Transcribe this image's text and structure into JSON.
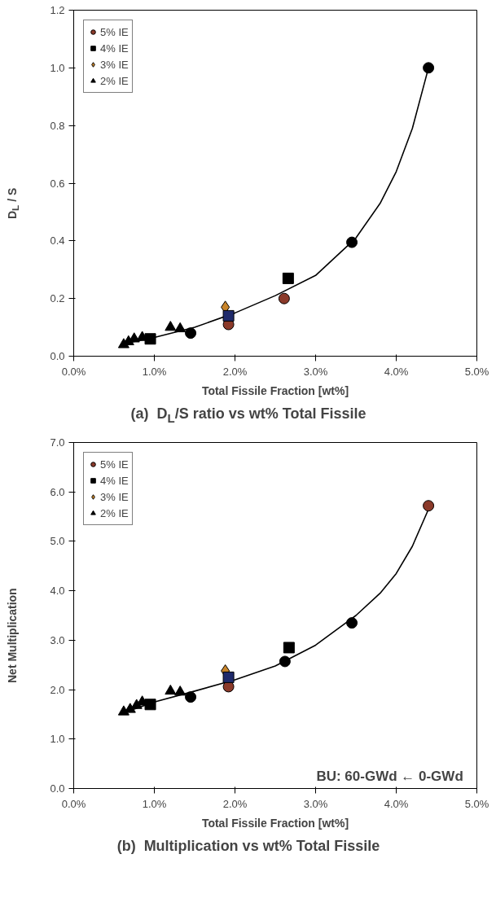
{
  "chart_data": [
    {
      "type": "scatter",
      "xlabel": "Total Fissile Fraction [wt%]",
      "ylabel": "D$_{L}$ / S",
      "title": "(a)  D$_{L}$/S ratio vs wt% Total Fissile",
      "xlim": [
        0,
        5
      ],
      "xticks": [
        {
          "value": 0,
          "label": "0.0%"
        },
        {
          "value": 1,
          "label": "1.0%"
        },
        {
          "value": 2,
          "label": "2.0%"
        },
        {
          "value": 3,
          "label": "3.0%"
        },
        {
          "value": 4,
          "label": "4.0%"
        },
        {
          "value": 5,
          "label": "5.0%"
        }
      ],
      "ylim": [
        0,
        1.2
      ],
      "yticks": [
        {
          "value": 0,
          "label": "0.0"
        },
        {
          "value": 0.2,
          "label": "0.2"
        },
        {
          "value": 0.4,
          "label": "0.4"
        },
        {
          "value": 0.6,
          "label": "0.6"
        },
        {
          "value": 0.8,
          "label": "0.8"
        },
        {
          "value": 1.0,
          "label": "1.0"
        },
        {
          "value": 1.2,
          "label": "1.2"
        }
      ],
      "grid": false,
      "legend": "top left",
      "series": [
        {
          "type": "line",
          "color": "#000000",
          "marker": "none",
          "line_style": "solid",
          "x": [
            0.65,
            1.0,
            1.5,
            2.0,
            2.5,
            3.0,
            3.5,
            3.8,
            4.0,
            4.2,
            4.4
          ],
          "values": [
            0.045,
            0.065,
            0.1,
            0.15,
            0.21,
            0.28,
            0.41,
            0.53,
            0.64,
            0.79,
            1.0
          ]
        },
        {
          "name": "5% IE",
          "color": "#8b3a2a",
          "marker": "circle",
          "x": [
            1.92,
            2.61
          ],
          "values": [
            0.11,
            0.2
          ]
        },
        {
          "name": "4% IE",
          "color": "#000000",
          "marker": "square",
          "x": [
            2.66,
            1.02,
            0.95
          ],
          "values": [
            0.27,
            null,
            0.06
          ]
        },
        {
          "name": "3% IE",
          "color": "#c8842a",
          "marker": "diamond",
          "x": [
            1.88
          ],
          "values": [
            0.17
          ]
        },
        {
          "name": "2% IE",
          "color": "#000000",
          "marker": "triangle",
          "x": [
            0.62,
            0.68,
            0.75,
            0.85,
            1.2,
            1.32
          ],
          "values": [
            0.04,
            0.05,
            0.06,
            0.065,
            0.1,
            0.095
          ]
        },
        {
          "color": "#000000",
          "marker": "circle",
          "x": [
            1.45,
            3.45,
            4.4
          ],
          "values": [
            0.08,
            0.395,
            1.0
          ]
        },
        {
          "color": "#1f2a6b",
          "marker": "square",
          "x": [
            1.92
          ],
          "values": [
            0.14
          ]
        }
      ]
    },
    {
      "type": "scatter",
      "xlabel": "Total Fissile Fraction [wt%]",
      "ylabel": "Net Multiplication",
      "title": "(b)  Multiplication vs wt% Total Fissile",
      "xlim": [
        0,
        5
      ],
      "xticks": [
        {
          "value": 0,
          "label": "0.0%"
        },
        {
          "value": 1,
          "label": "1.0%"
        },
        {
          "value": 2,
          "label": "2.0%"
        },
        {
          "value": 3,
          "label": "3.0%"
        },
        {
          "value": 4,
          "label": "4.0%"
        },
        {
          "value": 5,
          "label": "5.0%"
        }
      ],
      "ylim": [
        0,
        7
      ],
      "yticks": [
        {
          "value": 0,
          "label": "0.0"
        },
        {
          "value": 1,
          "label": "1.0"
        },
        {
          "value": 2,
          "label": "2.0"
        },
        {
          "value": 3,
          "label": "3.0"
        },
        {
          "value": 4,
          "label": "4.0"
        },
        {
          "value": 5,
          "label": "5.0"
        },
        {
          "value": 6,
          "label": "6.0"
        },
        {
          "value": 7,
          "label": "7.0"
        }
      ],
      "grid": false,
      "legend": "top left",
      "annotations": [
        "BU:  60-GWd ← 0-GWd"
      ],
      "series": [
        {
          "type": "line",
          "color": "#000000",
          "marker": "none",
          "line_style": "solid",
          "x": [
            0.65,
            1.0,
            1.5,
            2.0,
            2.5,
            3.0,
            3.5,
            3.8,
            4.0,
            4.2,
            4.4
          ],
          "values": [
            1.55,
            1.75,
            1.97,
            2.2,
            2.48,
            2.9,
            3.5,
            3.95,
            4.35,
            4.9,
            5.65
          ]
        },
        {
          "name": "5% IE",
          "color": "#8b3a2a",
          "marker": "circle",
          "x": [
            1.92,
            4.4
          ],
          "values": [
            2.06,
            5.72
          ]
        },
        {
          "name": "4% IE",
          "color": "#000000",
          "marker": "square",
          "x": [
            2.67,
            1.02,
            0.95
          ],
          "values": [
            2.85,
            null,
            1.7
          ]
        },
        {
          "name": "3% IE",
          "color": "#c8842a",
          "marker": "diamond",
          "x": [
            1.88
          ],
          "values": [
            2.38
          ]
        },
        {
          "name": "2% IE",
          "color": "#000000",
          "marker": "triangle",
          "x": [
            0.62,
            0.7,
            0.78,
            0.85,
            1.2,
            1.32
          ],
          "values": [
            1.55,
            1.6,
            1.68,
            1.75,
            1.97,
            1.95
          ]
        },
        {
          "color": "#000000",
          "marker": "circle",
          "x": [
            1.45,
            2.62,
            3.45
          ],
          "values": [
            1.85,
            2.57,
            3.35
          ]
        },
        {
          "color": "#1f2a6b",
          "marker": "square",
          "x": [
            1.92
          ],
          "values": [
            2.25
          ]
        }
      ]
    }
  ]
}
